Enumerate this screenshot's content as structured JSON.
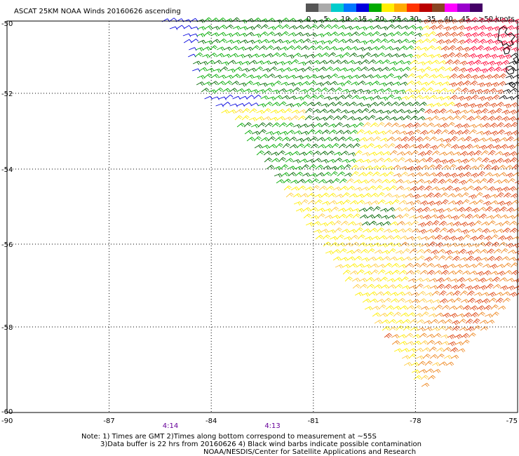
{
  "title": "ASCAT 25KM NOAA Winds 20160626 ascending",
  "legend": {
    "swatches": [
      {
        "label": "0",
        "color": "#555555"
      },
      {
        "label": "5",
        "color": "#aaaaaa"
      },
      {
        "label": "10",
        "color": "#00cccc"
      },
      {
        "label": "15",
        "color": "#0077ff"
      },
      {
        "label": "20",
        "color": "#0000dd"
      },
      {
        "label": "25",
        "color": "#00aa00"
      },
      {
        "label": "30",
        "color": "#ffee00"
      },
      {
        "label": "35",
        "color": "#ffaa00"
      },
      {
        "label": "40",
        "color": "#ff3300"
      },
      {
        "label": "45",
        "color": "#bb0000"
      },
      {
        "label": "",
        "color": "#884422"
      },
      {
        "label": "",
        "color": "#ff00ff"
      },
      {
        "label": "",
        "color": "#9900cc"
      },
      {
        "label": "",
        "color": "#440066"
      }
    ],
    "labels": [
      "0",
      "5",
      "10",
      "15",
      "20",
      "25",
      "30",
      "35",
      "40",
      "45",
      ">50 knots"
    ]
  },
  "map": {
    "lon_ticks": [
      "-90",
      "-87",
      "-84",
      "-81",
      "-78",
      "-75"
    ],
    "lat_ticks": [
      "-50",
      "-52",
      "-54",
      "-56",
      "-58",
      "-60"
    ],
    "time_marks": [
      {
        "label": "4:14",
        "lon": -85.2
      },
      {
        "label": "4:13",
        "lon": -82.2
      }
    ],
    "bounds": {
      "lon": [
        -90,
        -75
      ],
      "lat": [
        -60,
        -50
      ]
    },
    "colors": {
      "blue": "#0000dd",
      "green": "#00aa00",
      "dark_green": "#006600",
      "yellow": "#ffee00",
      "light_orange": "#ffcc44",
      "orange": "#ee8822",
      "red_orange": "#dd4411",
      "red": "#ff0033",
      "black": "#000000",
      "purple": "#660099"
    }
  },
  "notes": {
    "line1": "Note: 1) Times are GMT 2)Times along bottom correspond to measurement at ~55S",
    "line2": "3)Data buffer is 22 hrs from 20160626 4) Black wind barbs indicate possible contamination",
    "line3": "NOAA/NESDIS/Center for Satellite Applications and Research"
  }
}
